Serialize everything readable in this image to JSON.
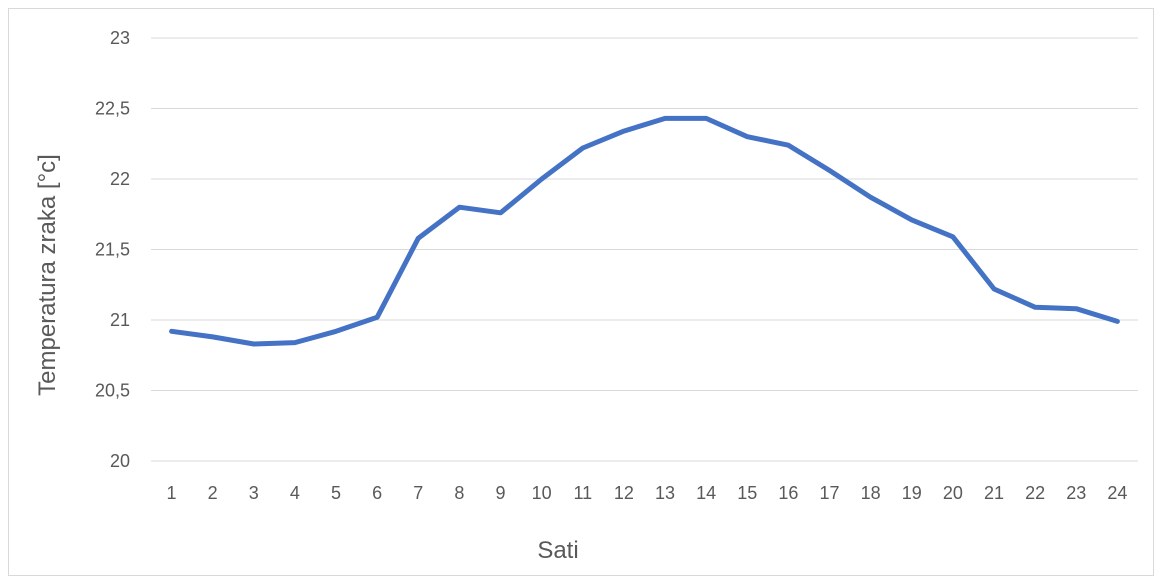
{
  "chart_data": {
    "type": "line",
    "xlabel": "Sati",
    "ylabel": "Temperatura zraka [°c]",
    "x": [
      "1",
      "2",
      "3",
      "4",
      "5",
      "6",
      "7",
      "8",
      "9",
      "10",
      "11",
      "12",
      "13",
      "14",
      "15",
      "16",
      "17",
      "18",
      "19",
      "20",
      "21",
      "22",
      "23",
      "24"
    ],
    "series": [
      {
        "values": [
          20.92,
          20.88,
          20.83,
          20.84,
          20.92,
          21.02,
          21.58,
          21.8,
          21.76,
          22.0,
          22.22,
          22.34,
          22.43,
          22.43,
          22.3,
          22.24,
          22.06,
          21.87,
          21.71,
          21.59,
          21.22,
          21.09,
          21.08,
          20.99
        ],
        "color": "#4472c4"
      }
    ],
    "ylim": [
      20,
      23
    ],
    "yticks": [
      "20",
      "20,5",
      "21",
      "21,5",
      "22",
      "22,5",
      "23"
    ],
    "ytick_values": [
      20,
      20.5,
      21,
      21.5,
      22,
      22.5,
      23
    ],
    "grid": true,
    "legend": "none"
  }
}
